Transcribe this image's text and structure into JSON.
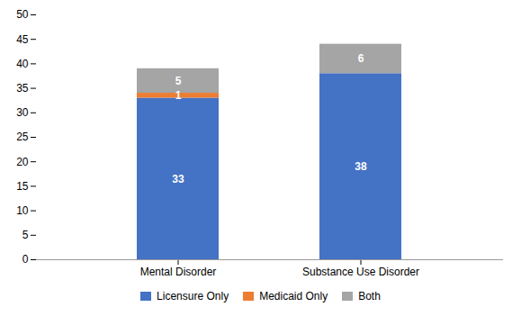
{
  "chart_data": {
    "type": "bar",
    "stacked": true,
    "categories": [
      "Mental Disorder",
      "Substance Use Disorder"
    ],
    "series": [
      {
        "name": "Licensure Only",
        "color": "#4472C4",
        "values": [
          33,
          38
        ]
      },
      {
        "name": "Medicaid Only",
        "color": "#ED7D31",
        "values": [
          1,
          0
        ]
      },
      {
        "name": "Both",
        "color": "#A5A5A5",
        "values": [
          5,
          6
        ]
      }
    ],
    "ylim": [
      0,
      50
    ],
    "yticks": [
      0,
      5,
      10,
      15,
      20,
      25,
      30,
      35,
      40,
      45,
      50
    ],
    "grid": false,
    "legend": "bottom",
    "data_labels": true
  }
}
